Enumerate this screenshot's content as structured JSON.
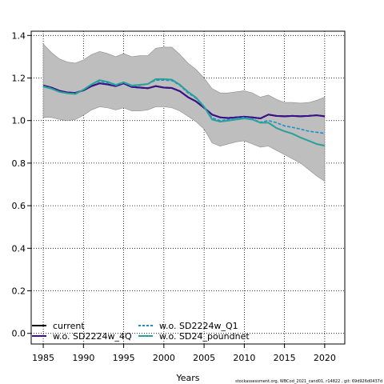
{
  "chart_data": {
    "type": "line",
    "xlabel": "Years",
    "ylabel": "",
    "xlim": [
      1983.5,
      2022.5
    ],
    "ylim": [
      -0.05,
      1.42
    ],
    "x_ticks": [
      1985,
      1990,
      1995,
      2000,
      2005,
      2010,
      2015,
      2020
    ],
    "y_ticks": [
      0.0,
      0.2,
      0.4,
      0.6,
      0.8,
      1.0,
      1.2,
      1.4
    ],
    "grid": true,
    "legend_position": "bottom-left",
    "footer": "stockassessment.org, WBCod_2021_cand01, r14822 , git: 69d926d0437d",
    "x": [
      1985,
      1986,
      1987,
      1988,
      1989,
      1990,
      1991,
      1992,
      1993,
      1994,
      1995,
      1996,
      1997,
      1998,
      1999,
      2000,
      2001,
      2002,
      2003,
      2004,
      2005,
      2006,
      2007,
      2008,
      2009,
      2010,
      2011,
      2012,
      2013,
      2014,
      2015,
      2016,
      2017,
      2018,
      2019,
      2020
    ],
    "band": {
      "name": "confidence interval",
      "color": "#bebebe",
      "upper": [
        1.36,
        1.32,
        1.29,
        1.275,
        1.27,
        1.285,
        1.31,
        1.325,
        1.315,
        1.3,
        1.315,
        1.3,
        1.305,
        1.305,
        1.34,
        1.345,
        1.345,
        1.31,
        1.27,
        1.24,
        1.2,
        1.15,
        1.13,
        1.13,
        1.135,
        1.14,
        1.13,
        1.11,
        1.12,
        1.1,
        1.085,
        1.085,
        1.082,
        1.085,
        1.095,
        1.11
      ],
      "lower": [
        1.015,
        1.015,
        1.005,
        1.0,
        1.005,
        1.025,
        1.05,
        1.065,
        1.06,
        1.05,
        1.06,
        1.045,
        1.045,
        1.05,
        1.065,
        1.065,
        1.06,
        1.045,
        1.02,
        0.995,
        0.96,
        0.895,
        0.88,
        0.89,
        0.9,
        0.905,
        0.89,
        0.875,
        0.88,
        0.86,
        0.84,
        0.82,
        0.8,
        0.77,
        0.74,
        0.715
      ]
    },
    "series": [
      {
        "name": "current",
        "color": "#000000",
        "dash": "solid",
        "values": [
          1.165,
          1.155,
          1.14,
          1.132,
          1.13,
          1.142,
          1.162,
          1.175,
          1.17,
          1.162,
          1.175,
          1.158,
          1.155,
          1.152,
          1.162,
          1.155,
          1.153,
          1.138,
          1.11,
          1.09,
          1.06,
          1.028,
          1.015,
          1.012,
          1.015,
          1.018,
          1.015,
          1.01,
          1.028,
          1.022,
          1.02,
          1.022,
          1.02,
          1.022,
          1.025,
          1.02
        ]
      },
      {
        "name": "w.o. SD2224w_Q1",
        "color": "#1b8fd1",
        "dash": "dashed",
        "values": [
          1.162,
          1.152,
          1.135,
          1.128,
          1.128,
          1.145,
          1.17,
          1.185,
          1.178,
          1.165,
          1.178,
          1.162,
          1.165,
          1.172,
          1.19,
          1.19,
          1.188,
          1.165,
          1.13,
          1.105,
          1.065,
          1.012,
          1.0,
          1.005,
          1.01,
          1.015,
          1.008,
          0.992,
          1.0,
          0.99,
          0.975,
          0.968,
          0.96,
          0.95,
          0.945,
          0.94
        ]
      },
      {
        "name": "w.o. SD2224w_4Q",
        "color": "#3b0f8f",
        "dash": "solid",
        "values": [
          1.165,
          1.155,
          1.14,
          1.132,
          1.13,
          1.142,
          1.162,
          1.175,
          1.17,
          1.162,
          1.175,
          1.158,
          1.155,
          1.152,
          1.162,
          1.155,
          1.153,
          1.138,
          1.11,
          1.09,
          1.06,
          1.028,
          1.015,
          1.012,
          1.015,
          1.018,
          1.015,
          1.01,
          1.028,
          1.022,
          1.02,
          1.022,
          1.02,
          1.022,
          1.025,
          1.02
        ]
      },
      {
        "name": "w.o. SD24_poundnet",
        "color": "#2aa198",
        "dash": "solid",
        "values": [
          1.16,
          1.15,
          1.135,
          1.128,
          1.125,
          1.145,
          1.17,
          1.19,
          1.182,
          1.168,
          1.18,
          1.165,
          1.168,
          1.172,
          1.195,
          1.195,
          1.192,
          1.168,
          1.135,
          1.108,
          1.065,
          1.005,
          0.995,
          1.0,
          1.005,
          1.01,
          1.005,
          0.99,
          0.99,
          0.965,
          0.95,
          0.938,
          0.92,
          0.905,
          0.89,
          0.882
        ]
      }
    ]
  }
}
